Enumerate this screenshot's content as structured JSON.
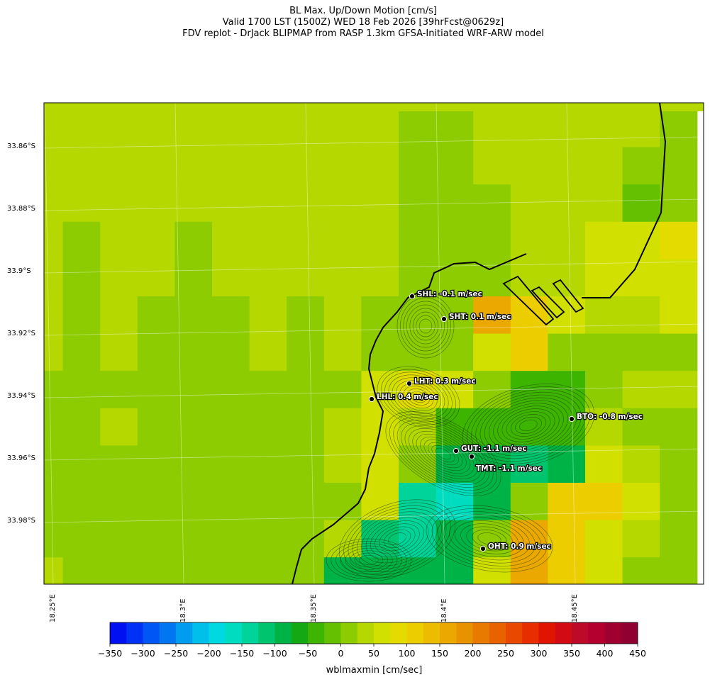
{
  "title": {
    "line1": "BL Max. Up/Down Motion [cm/s]",
    "line2": "Valid 1700 LST (1500Z) WED 18 Feb 2026 [39hrFcst@0629z]",
    "line3": "FDV replot - DrJack BLIPMAP from RASP 1.3km GFSA-Initiated WRF-ARW model"
  },
  "lat_labels": [
    "33.86°S",
    "33.88°S",
    "33.9°S",
    "33.92°S",
    "33.94°S",
    "33.96°S",
    "33.98°S"
  ],
  "lon_labels": [
    "18.25°E",
    "18.3°E",
    "18.35°E",
    "18.4°E",
    "18.45°E"
  ],
  "stations": [
    {
      "id": "SHL",
      "label": "SHL: -0.1 m/sec",
      "value": -0.1
    },
    {
      "id": "SHT",
      "label": "SHT: 0.1 m/sec",
      "value": 0.1
    },
    {
      "id": "LHT",
      "label": "LHT: 0.3 m/sec",
      "value": 0.3
    },
    {
      "id": "LHL",
      "label": "LHL: 0.4 m/sec",
      "value": 0.4
    },
    {
      "id": "BTO",
      "label": "BTO: -0.8 m/sec",
      "value": -0.8
    },
    {
      "id": "GUT",
      "label": "GUT: -1.1 m/sec",
      "value": -1.1
    },
    {
      "id": "TMT",
      "label": "TMT: -1.1 m/sec",
      "value": -1.1
    },
    {
      "id": "OHT",
      "label": "OHT: 0.9 m/sec",
      "value": 0.9
    }
  ],
  "colorbar": {
    "label": "wblmaxmin [cm/sec]",
    "tick_labels": [
      "−350",
      "−300",
      "−250",
      "−200",
      "−150",
      "−100",
      "−50",
      "0",
      "50",
      "100",
      "150",
      "200",
      "250",
      "300",
      "350",
      "400",
      "450"
    ],
    "min": -350,
    "max": 450,
    "step": 25,
    "colors": [
      "#0010f0",
      "#0032f5",
      "#0055f5",
      "#0077f0",
      "#009cf0",
      "#00c0eb",
      "#00d9e0",
      "#00dcc0",
      "#00d49a",
      "#00c46e",
      "#00b347",
      "#14a814",
      "#3cb400",
      "#64c000",
      "#8ccc00",
      "#b4d800",
      "#d2e000",
      "#e4dc00",
      "#ecce00",
      "#ecbc00",
      "#eaa800",
      "#e89200",
      "#e87a00",
      "#e86200",
      "#e84800",
      "#e82e00",
      "#e01400",
      "#d20a14",
      "#bc0a28",
      "#b4002e",
      "#a00030",
      "#900030"
    ]
  },
  "field_grid": {
    "comment_units": "cm/s",
    "rows": [
      [
        30,
        30,
        30,
        30,
        30,
        30,
        30,
        30,
        30,
        30,
        30,
        30,
        30,
        30,
        30,
        30,
        30,
        10
      ],
      [
        30,
        30,
        30,
        30,
        30,
        30,
        30,
        30,
        30,
        30,
        10,
        10,
        30,
        30,
        30,
        30,
        30,
        10
      ],
      [
        30,
        30,
        30,
        30,
        30,
        30,
        30,
        30,
        30,
        30,
        10,
        10,
        30,
        30,
        30,
        30,
        10,
        10
      ],
      [
        30,
        30,
        30,
        30,
        30,
        30,
        30,
        30,
        30,
        30,
        10,
        10,
        10,
        30,
        30,
        30,
        -10,
        10
      ],
      [
        30,
        10,
        30,
        30,
        10,
        30,
        30,
        30,
        30,
        30,
        10,
        10,
        10,
        30,
        30,
        60,
        60,
        90
      ],
      [
        30,
        10,
        30,
        30,
        10,
        30,
        30,
        30,
        30,
        30,
        10,
        10,
        10,
        30,
        30,
        60,
        60,
        60
      ],
      [
        30,
        10,
        30,
        10,
        10,
        10,
        30,
        10,
        30,
        10,
        10,
        10,
        150,
        110,
        50,
        30,
        30,
        60
      ],
      [
        30,
        10,
        30,
        10,
        10,
        10,
        30,
        10,
        30,
        10,
        10,
        10,
        60,
        110,
        10,
        10,
        10,
        10
      ],
      [
        10,
        10,
        10,
        10,
        10,
        10,
        10,
        10,
        10,
        60,
        90,
        60,
        10,
        -40,
        -40,
        10,
        30,
        30
      ],
      [
        10,
        10,
        30,
        10,
        10,
        10,
        10,
        10,
        30,
        60,
        30,
        -40,
        -40,
        -40,
        -40,
        30,
        10,
        10
      ],
      [
        10,
        10,
        10,
        10,
        10,
        10,
        10,
        10,
        30,
        60,
        10,
        -90,
        -90,
        -120,
        -90,
        60,
        30,
        10
      ],
      [
        10,
        10,
        10,
        10,
        10,
        10,
        10,
        10,
        10,
        60,
        -140,
        -160,
        -90,
        10,
        110,
        110,
        60,
        10
      ],
      [
        10,
        10,
        10,
        10,
        10,
        10,
        10,
        10,
        30,
        -120,
        -140,
        -90,
        10,
        150,
        110,
        60,
        30,
        10
      ],
      [
        30,
        10,
        10,
        10,
        10,
        10,
        10,
        10,
        -90,
        -90,
        -90,
        -90,
        60,
        150,
        110,
        60,
        10,
        10
      ],
      [
        30,
        10,
        10,
        10,
        10,
        10,
        10,
        10,
        -90,
        -50,
        -50,
        150,
        150,
        150,
        60,
        10,
        10,
        10
      ]
    ]
  }
}
